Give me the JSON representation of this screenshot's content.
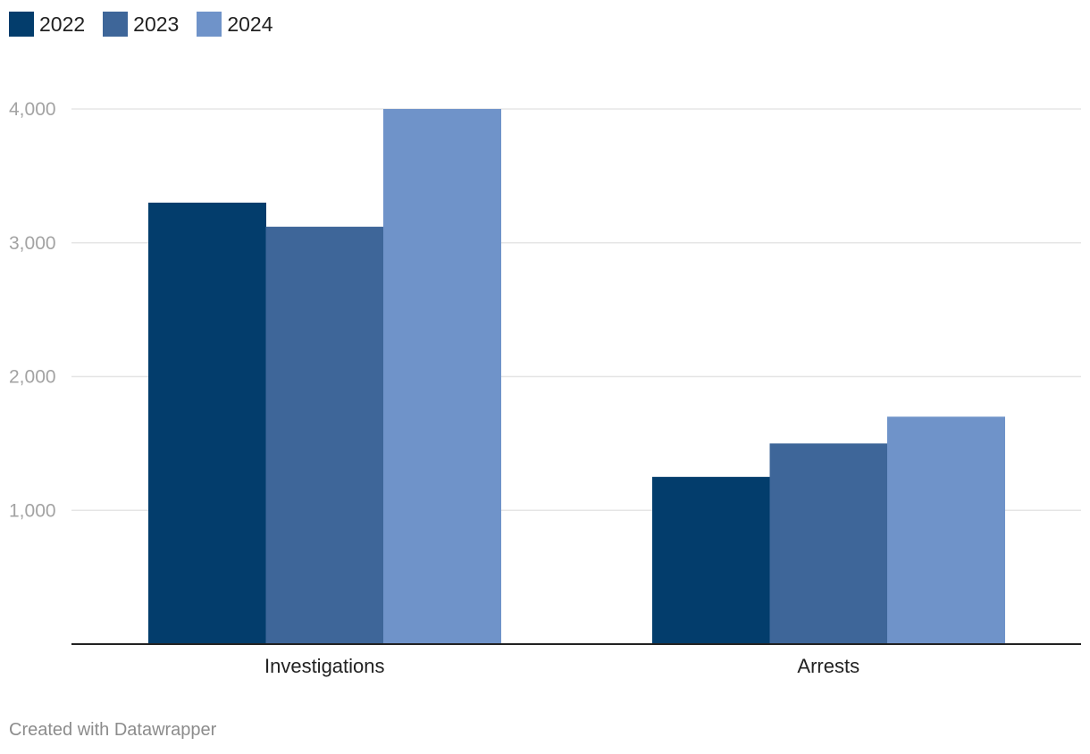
{
  "chart_data": {
    "type": "bar",
    "categories": [
      "Investigations",
      "Arrests"
    ],
    "series": [
      {
        "name": "2022",
        "color": "#033d6c",
        "values": [
          3300,
          1250
        ]
      },
      {
        "name": "2023",
        "color": "#3e6699",
        "values": [
          3120,
          1500
        ]
      },
      {
        "name": "2024",
        "color": "#6f93c9",
        "values": [
          4000,
          1700
        ]
      }
    ],
    "title": "",
    "xlabel": "",
    "ylabel": "",
    "ylim": [
      0,
      4000
    ],
    "yticks": [
      1000,
      2000,
      3000,
      4000
    ],
    "ytick_labels": [
      "1,000",
      "2,000",
      "3,000",
      "4,000"
    ],
    "grid": true,
    "legend_position": "top-left"
  },
  "footer": {
    "credit": "Created with Datawrapper"
  },
  "colors": {
    "grid": "#e5e5e5",
    "axis": "#222222",
    "tick_text": "#a3a3a3"
  }
}
